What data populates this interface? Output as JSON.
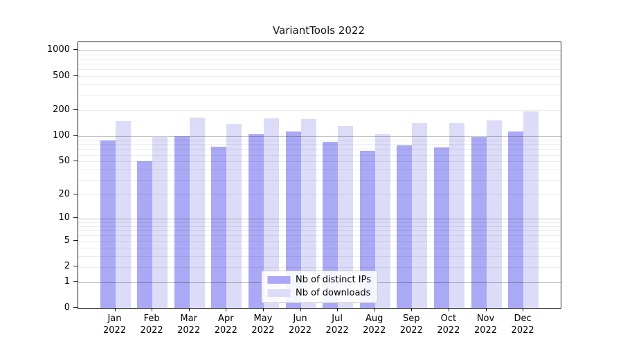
{
  "figure": {
    "background": "#ffffff",
    "title": "VariantTools 2022"
  },
  "chart_data": {
    "type": "bar",
    "title": "VariantTools 2022",
    "yscale": "log1p",
    "grid": true,
    "ylim": [
      0,
      1250
    ],
    "categories": [
      "Jan 2022",
      "Feb 2022",
      "Mar 2022",
      "Apr 2022",
      "May 2022",
      "Jun 2022",
      "Jul 2022",
      "Aug 2022",
      "Sep 2022",
      "Oct 2022",
      "Nov 2022",
      "Dec 2022"
    ],
    "month_labels": [
      "Jan",
      "Feb",
      "Mar",
      "Apr",
      "May",
      "Jun",
      "Jul",
      "Aug",
      "Sep",
      "Oct",
      "Nov",
      "Dec"
    ],
    "year_label": "2022",
    "series": [
      {
        "name": "Nb of distinct IPs",
        "color": "#a9a9f5",
        "values": [
          88,
          50,
          100,
          75,
          105,
          112,
          86,
          67,
          77,
          73,
          97,
          112
        ]
      },
      {
        "name": "Nb of downloads",
        "color": "#dcdcf8",
        "values": [
          150,
          97,
          165,
          140,
          160,
          157,
          131,
          104,
          142,
          141,
          153,
          196
        ]
      }
    ],
    "ytick_values": [
      1000,
      500,
      200,
      100,
      50,
      20,
      10,
      5,
      2,
      1,
      0
    ],
    "ytick_labels": [
      "1000",
      "500",
      "200",
      "100",
      "50",
      "20",
      "10",
      "5",
      "2",
      "1",
      "0"
    ],
    "grid_major_values": [
      1,
      10,
      100,
      1000
    ],
    "grid_minor_values": [
      2,
      3,
      4,
      5,
      6,
      7,
      8,
      9,
      20,
      30,
      40,
      50,
      60,
      70,
      80,
      90,
      200,
      300,
      400,
      500,
      600,
      700,
      800,
      900
    ],
    "legend": {
      "position": "lower center",
      "items": [
        "Nb of distinct IPs",
        "Nb of downloads"
      ]
    }
  }
}
